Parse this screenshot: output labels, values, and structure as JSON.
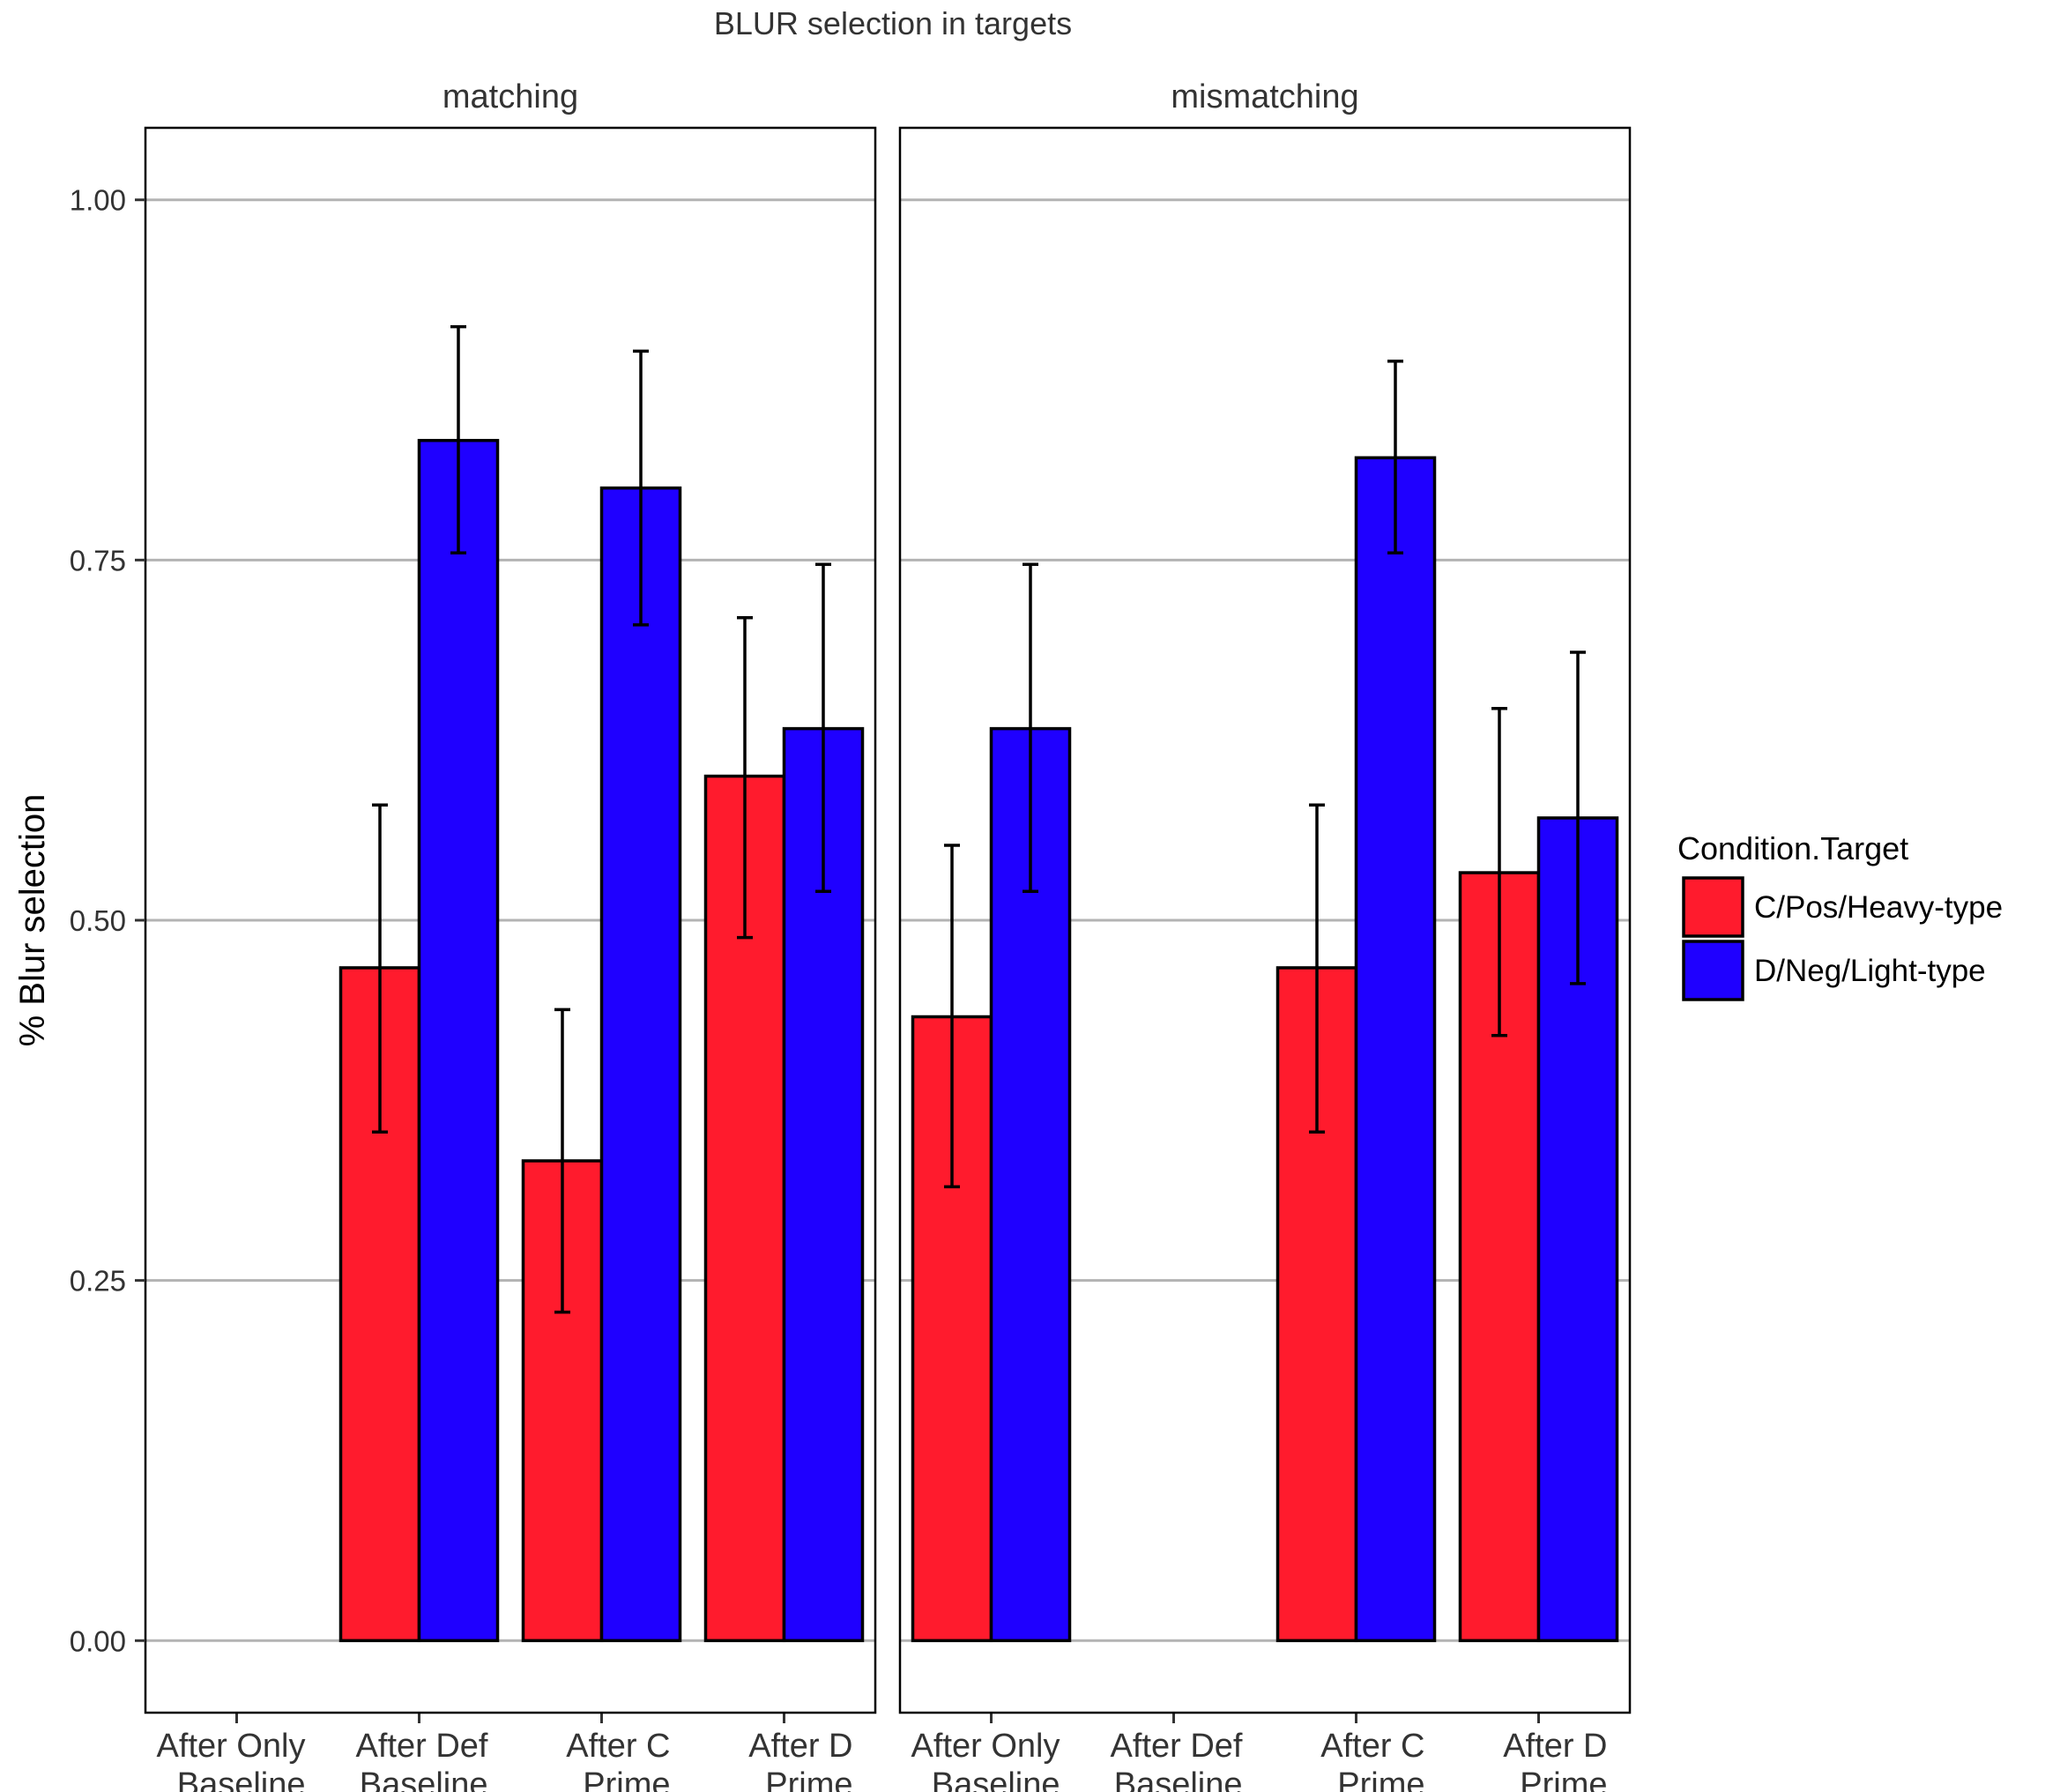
{
  "chart_data": {
    "type": "bar",
    "title": "BLUR selection in targets",
    "ylabel": "% Blur selection",
    "xlabel": "",
    "ylim": [
      -0.05,
      1.05
    ],
    "yticks": [
      "0.00",
      "0.25",
      "0.50",
      "0.75",
      "1.00"
    ],
    "ytick_values": [
      0,
      0.25,
      0.5,
      0.75,
      1.0
    ],
    "grid": true,
    "legend": {
      "title": "Condition.Target",
      "placement": "right",
      "entries": [
        {
          "label": "C/Pos/Heavy-type",
          "color": "#FF1B2D"
        },
        {
          "label": "D/Neg/Light-type",
          "color": "#1F00FF"
        }
      ]
    },
    "categories": [
      [
        "After Only",
        "Baseline"
      ],
      [
        "After Def",
        "Baseline"
      ],
      [
        "After C",
        "Prime"
      ],
      [
        "After D",
        "Prime"
      ]
    ],
    "panels": [
      {
        "name": "matching",
        "series": [
          {
            "values": [
              null,
              0.467,
              0.333,
              0.6
            ],
            "err_low": [
              null,
              0.353,
              0.228,
              0.488
            ],
            "err_high": [
              null,
              0.58,
              0.438,
              0.71
            ]
          },
          {
            "values": [
              null,
              0.833,
              0.8,
              0.633
            ],
            "err_low": [
              null,
              0.755,
              0.705,
              0.52
            ],
            "err_high": [
              null,
              0.912,
              0.895,
              0.747
            ]
          }
        ]
      },
      {
        "name": "mismatching",
        "series": [
          {
            "values": [
              0.433,
              null,
              0.467,
              0.533
            ],
            "err_low": [
              0.315,
              null,
              0.353,
              0.42
            ],
            "err_high": [
              0.552,
              null,
              0.58,
              0.647
            ]
          },
          {
            "values": [
              0.633,
              null,
              0.821,
              0.571
            ],
            "err_low": [
              0.52,
              null,
              0.755,
              0.456
            ],
            "err_high": [
              0.747,
              null,
              0.888,
              0.686
            ]
          }
        ]
      }
    ]
  }
}
